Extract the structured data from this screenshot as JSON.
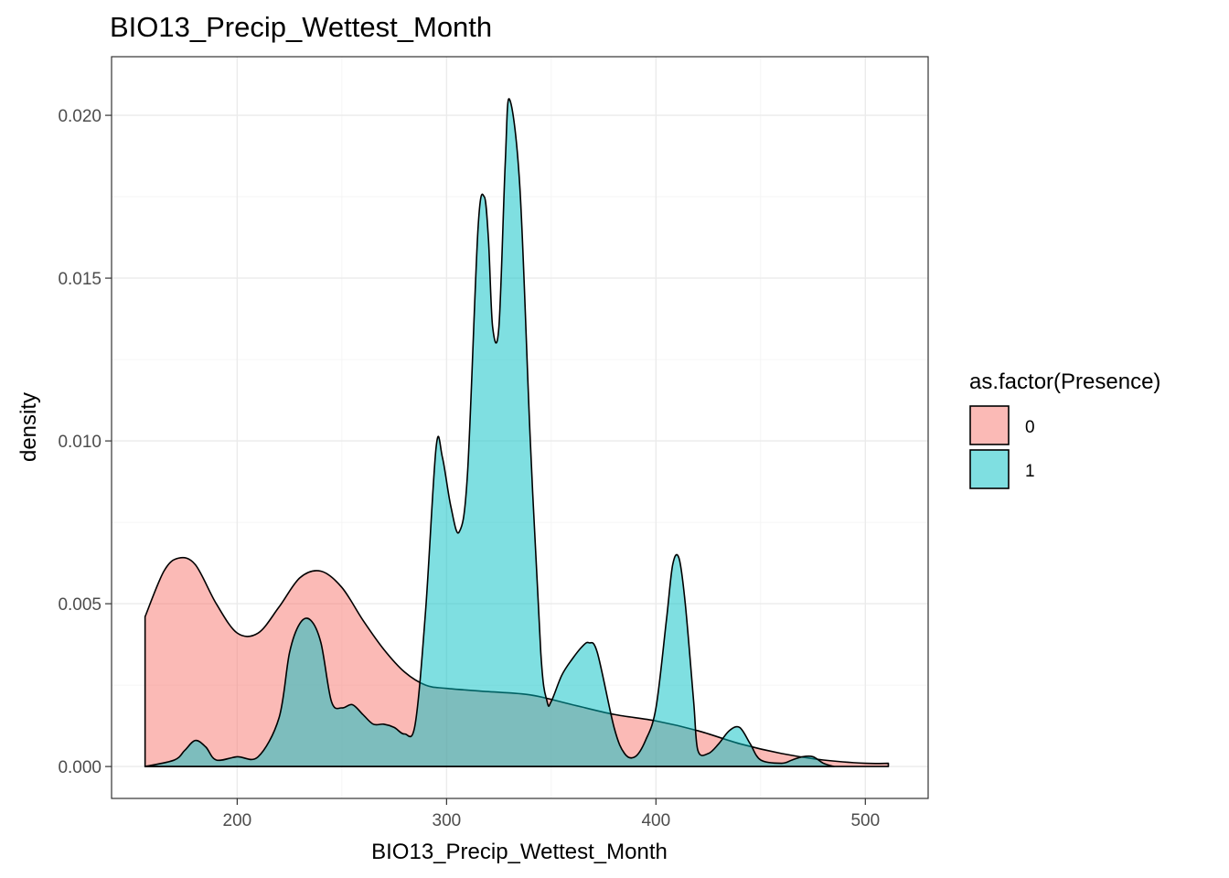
{
  "chart_data": {
    "type": "area",
    "title": "BIO13_Precip_Wettest_Month",
    "xlabel": "BIO13_Precip_Wettest_Month",
    "ylabel": "density",
    "xlim": [
      140,
      530
    ],
    "ylim": [
      -0.00098,
      0.0218
    ],
    "x_ticks": [
      200,
      300,
      400,
      500
    ],
    "x_tick_labels": [
      "200",
      "300",
      "400",
      "500"
    ],
    "y_ticks": [
      0.0,
      0.005,
      0.01,
      0.015,
      0.02
    ],
    "y_tick_labels": [
      "0.000",
      "0.005",
      "0.010",
      "0.015",
      "0.020"
    ],
    "grid": true,
    "legend": {
      "title": "as.factor(Presence)",
      "position": "right",
      "entries": [
        "0",
        "1"
      ]
    },
    "fill_opacity": 0.5,
    "series": [
      {
        "name": "0",
        "color": "#F8766D",
        "x": [
          156,
          165,
          172,
          180,
          190,
          200,
          210,
          220,
          230,
          240,
          250,
          260,
          270,
          280,
          290,
          300,
          320,
          340,
          360,
          380,
          400,
          420,
          440,
          460,
          480,
          500,
          511
        ],
        "y": [
          0.0046,
          0.006,
          0.0064,
          0.0062,
          0.005,
          0.0041,
          0.0041,
          0.0049,
          0.0058,
          0.006,
          0.0055,
          0.0045,
          0.0036,
          0.0029,
          0.0025,
          0.0024,
          0.0023,
          0.0022,
          0.0019,
          0.0016,
          0.0014,
          0.0011,
          0.0007,
          0.0004,
          0.0002,
          0.0001,
          0.0001
        ]
      },
      {
        "name": "1",
        "color": "#00BFC4",
        "x": [
          156,
          170,
          175,
          180,
          185,
          190,
          200,
          210,
          220,
          225,
          230,
          235,
          240,
          245,
          250,
          255,
          260,
          265,
          270,
          275,
          280,
          285,
          290,
          295,
          298,
          302,
          306,
          310,
          315,
          318,
          320,
          322,
          325,
          328,
          330,
          335,
          340,
          345,
          348,
          350,
          355,
          360,
          365,
          368,
          372,
          380,
          385,
          390,
          395,
          400,
          405,
          408,
          411,
          414,
          418,
          420,
          425,
          430,
          435,
          440,
          445,
          450,
          460,
          465,
          470,
          475,
          480,
          485
        ],
        "y": [
          0.0,
          0.0002,
          0.0005,
          0.0008,
          0.0006,
          0.0002,
          0.0003,
          0.0003,
          0.0015,
          0.0035,
          0.0044,
          0.0045,
          0.0038,
          0.002,
          0.0018,
          0.0019,
          0.0016,
          0.0013,
          0.0013,
          0.0012,
          0.001,
          0.0013,
          0.0048,
          0.0098,
          0.0095,
          0.008,
          0.0072,
          0.009,
          0.0165,
          0.0175,
          0.0162,
          0.0135,
          0.0135,
          0.0185,
          0.0205,
          0.0178,
          0.01,
          0.0035,
          0.002,
          0.002,
          0.0028,
          0.0033,
          0.0037,
          0.0038,
          0.0035,
          0.0012,
          0.0004,
          0.0003,
          0.0008,
          0.0018,
          0.0045,
          0.0062,
          0.0064,
          0.005,
          0.002,
          0.0005,
          0.0004,
          0.0007,
          0.0011,
          0.0012,
          0.0007,
          0.0002,
          0.0001,
          0.0002,
          0.0003,
          0.0003,
          0.0001,
          0.0
        ]
      }
    ]
  }
}
